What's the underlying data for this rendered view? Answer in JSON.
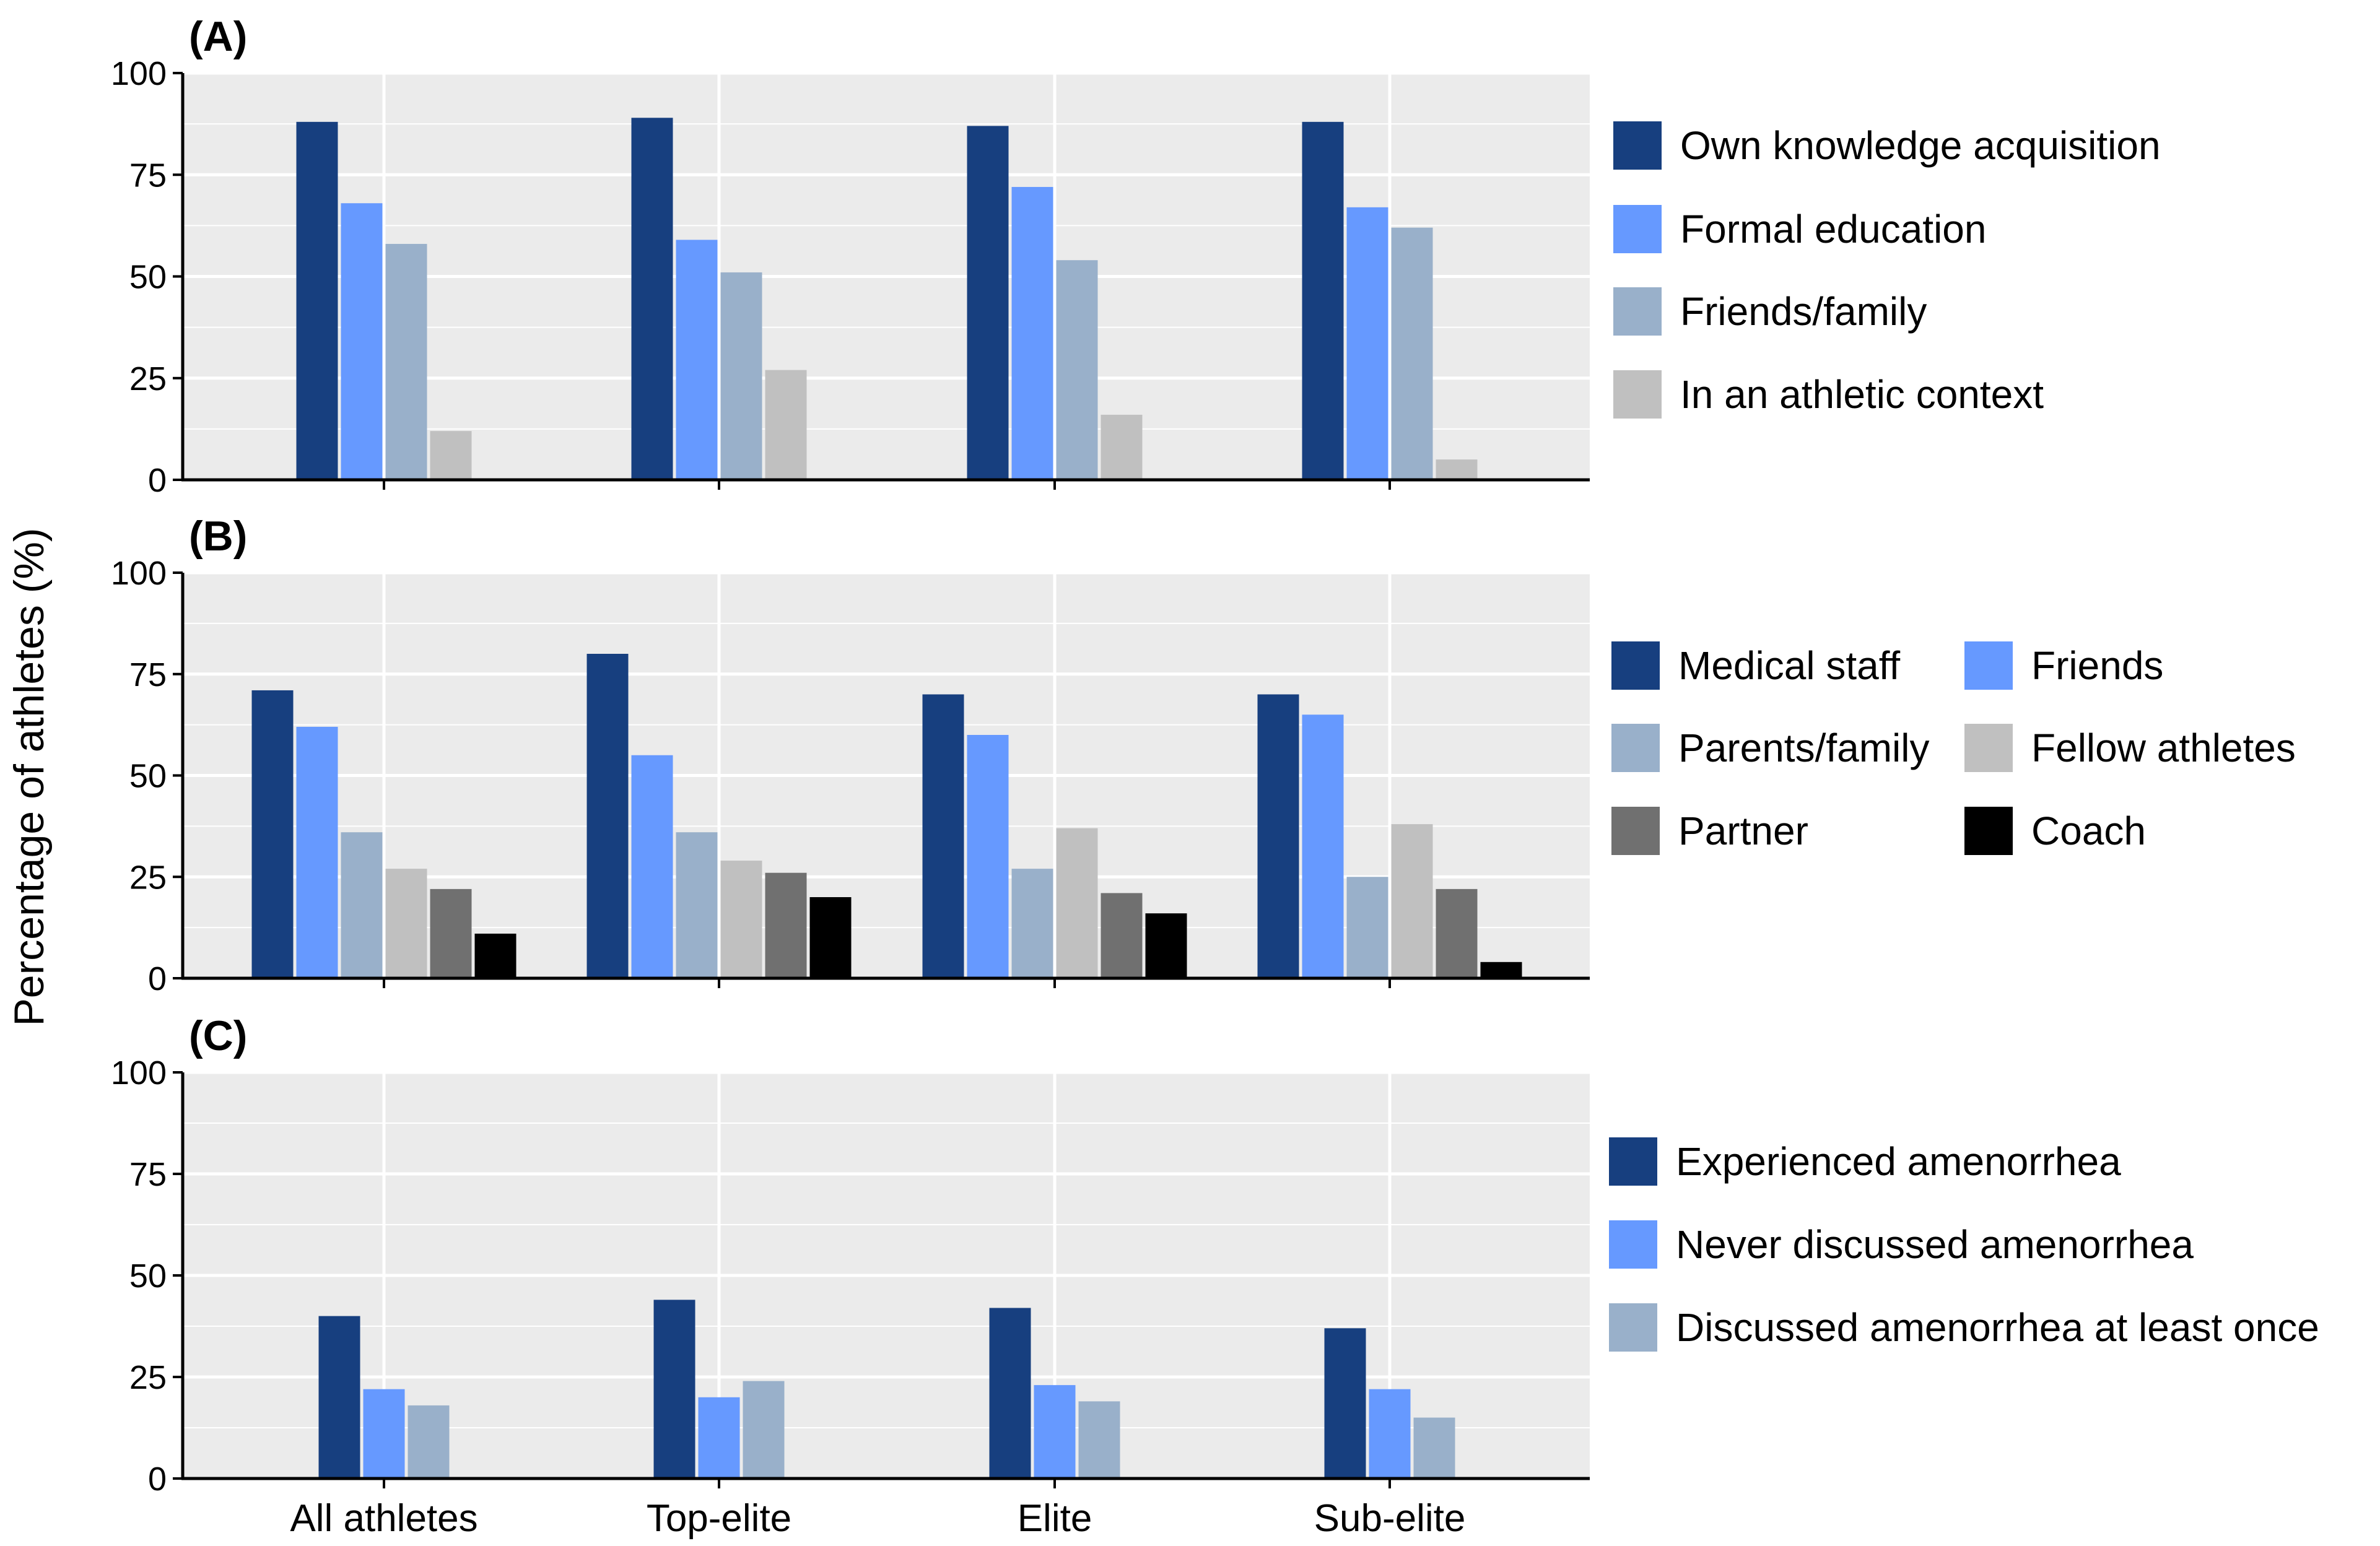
{
  "colors": {
    "panel_bg": "#EBEBEB",
    "grid": "#FFFFFF",
    "dark_blue": "#173F7F",
    "light_blue": "#6699FF",
    "grey_blue": "#99B0CA",
    "light_grey": "#C0C0C0",
    "dark_grey": "#707070",
    "black": "#000000"
  },
  "chart_data": {
    "type": "bar",
    "ylabel": "Percentage of athletes (%)",
    "categories": [
      "All athletes",
      "Top-elite",
      "Elite",
      "Sub-elite"
    ],
    "ylim": [
      0,
      100
    ],
    "yticks": [
      "0",
      "25",
      "50",
      "75",
      "100"
    ],
    "panels": [
      {
        "label": "(A)",
        "series": [
          {
            "name": "Own knowledge acquisition",
            "color": "#173F7F",
            "values": [
              88,
              89,
              87,
              88
            ]
          },
          {
            "name": "Formal education",
            "color": "#6699FF",
            "values": [
              68,
              59,
              72,
              67
            ]
          },
          {
            "name": "Friends/family",
            "color": "#99B0CA",
            "values": [
              58,
              51,
              54,
              62
            ]
          },
          {
            "name": "In an athletic context",
            "color": "#C0C0C0",
            "values": [
              12,
              27,
              16,
              5
            ]
          }
        ]
      },
      {
        "label": "(B)",
        "series": [
          {
            "name": "Medical staff",
            "color": "#173F7F",
            "values": [
              71,
              80,
              70,
              70
            ]
          },
          {
            "name": "Friends",
            "color": "#6699FF",
            "values": [
              62,
              55,
              60,
              65
            ]
          },
          {
            "name": "Parents/family",
            "color": "#99B0CA",
            "values": [
              36,
              36,
              27,
              25
            ]
          },
          {
            "name": "Fellow athletes",
            "color": "#C0C0C0",
            "values": [
              27,
              29,
              37,
              38
            ]
          },
          {
            "name": "Partner",
            "color": "#707070",
            "values": [
              22,
              26,
              21,
              22
            ]
          },
          {
            "name": "Coach",
            "color": "#000000",
            "values": [
              11,
              20,
              16,
              4
            ]
          }
        ]
      },
      {
        "label": "(C)",
        "series": [
          {
            "name": "Experienced amenorrhea",
            "color": "#173F7F",
            "values": [
              40,
              44,
              42,
              37
            ]
          },
          {
            "name": "Never discussed amenorrhea",
            "color": "#6699FF",
            "values": [
              22,
              20,
              23,
              22
            ]
          },
          {
            "name": "Discussed amenorrhea at least once",
            "color": "#99B0CA",
            "values": [
              18,
              24,
              19,
              15
            ]
          }
        ]
      }
    ]
  }
}
